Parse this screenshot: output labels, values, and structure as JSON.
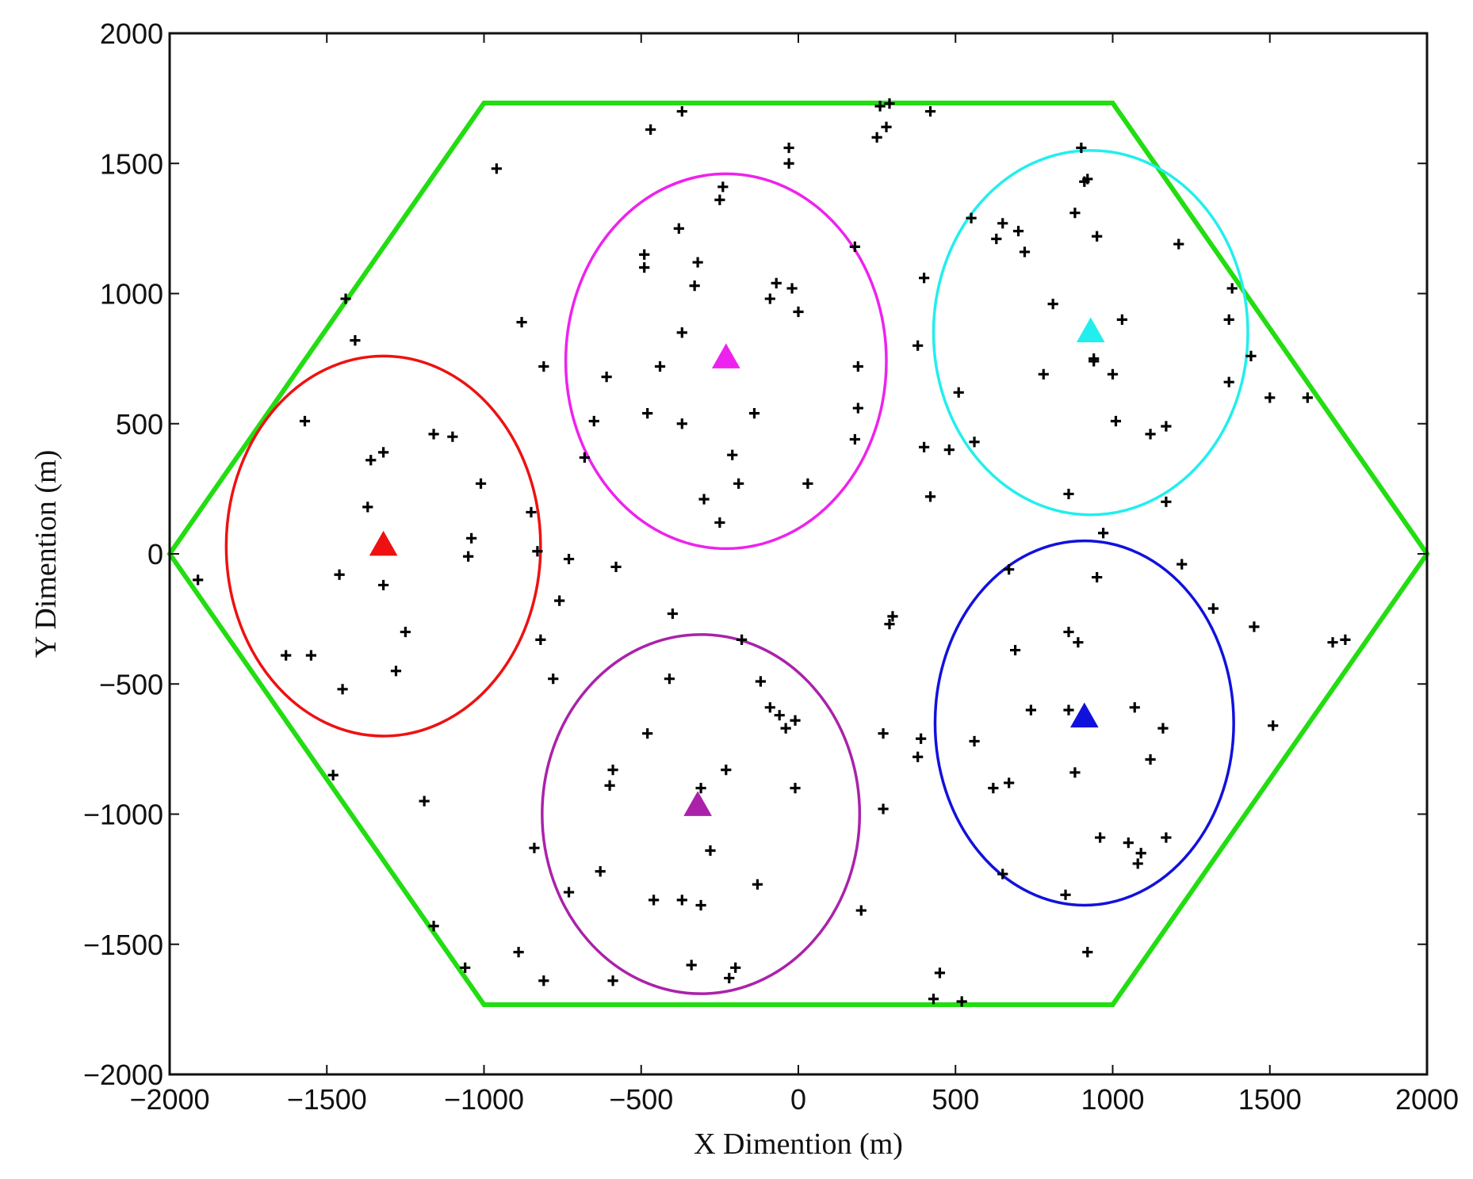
{
  "chart_data": {
    "type": "scatter",
    "title": "",
    "xlabel": "X Dimention (m)",
    "ylabel": "Y Dimention (m)",
    "xlim": [
      -2000,
      2000
    ],
    "ylim": [
      -2000,
      2000
    ],
    "xticks": [
      -2000,
      -1500,
      -1000,
      -500,
      0,
      500,
      1000,
      1500,
      2000
    ],
    "yticks": [
      -2000,
      -1500,
      -1000,
      -500,
      0,
      500,
      1000,
      1500,
      2000
    ],
    "xtick_labels": [
      "−2000",
      "−1500",
      "−1000",
      "−500",
      "0",
      "500",
      "1000",
      "1500",
      "2000"
    ],
    "ytick_labels": [
      "−2000",
      "−1500",
      "−1000",
      "−500",
      "0",
      "500",
      "1000",
      "1500",
      "2000"
    ],
    "grid": false,
    "legend": "none",
    "hexagon": {
      "color": "#22dd11",
      "vertices": [
        [
          -1000,
          1732
        ],
        [
          1000,
          1732
        ],
        [
          2000,
          0
        ],
        [
          1000,
          -1732
        ],
        [
          -1000,
          -1732
        ],
        [
          -2000,
          0
        ]
      ]
    },
    "small_cells": [
      {
        "color": "#ee1111",
        "center": [
          -1320,
          30
        ],
        "radii": [
          500,
          730
        ]
      },
      {
        "color": "#ee22ee",
        "center": [
          -230,
          740
        ],
        "radii": [
          510,
          720
        ]
      },
      {
        "color": "#22eeee",
        "center": [
          930,
          850
        ],
        "radii": [
          500,
          700
        ]
      },
      {
        "color": "#1111dd",
        "center": [
          910,
          -650
        ],
        "radii": [
          475,
          700
        ]
      },
      {
        "color": "#aa22aa",
        "center": [
          -310,
          -1000
        ],
        "radii": [
          505,
          690
        ]
      }
    ],
    "base_stations": [
      {
        "color": "#ee1111",
        "x": -1320,
        "y": 40
      },
      {
        "color": "#ee22ee",
        "x": -230,
        "y": 760
      },
      {
        "color": "#22eeee",
        "x": 930,
        "y": 860
      },
      {
        "color": "#1111dd",
        "x": 910,
        "y": -620
      },
      {
        "color": "#aa22aa",
        "x": -320,
        "y": -960
      }
    ],
    "users": {
      "color": "#000000",
      "x": [
        -1440,
        -1410,
        -1570,
        -1320,
        -1360,
        -1370,
        -1160,
        -1100,
        -1010,
        -1040,
        -1050,
        -850,
        -830,
        -1460,
        -1320,
        -1630,
        -1550,
        -1280,
        -1250,
        -1450,
        -1910,
        -960,
        -880,
        -810,
        -370,
        -370,
        -470,
        -490,
        -490,
        -320,
        -330,
        -240,
        -250,
        -30,
        -70,
        -90,
        -30,
        -20,
        0,
        -370,
        -440,
        -610,
        -650,
        -480,
        -380,
        -140,
        -210,
        -300,
        -250,
        -190,
        30,
        180,
        180,
        190,
        190,
        -680,
        260,
        280,
        420,
        400,
        380,
        420,
        400,
        480,
        510,
        550,
        560,
        630,
        650,
        700,
        720,
        810,
        880,
        900,
        910,
        920,
        950,
        940,
        1030,
        1000,
        1010,
        1120,
        1170,
        1210,
        1380,
        1370,
        1440,
        1370,
        1500,
        1620,
        1170,
        860,
        970,
        780,
        940,
        950,
        -1480,
        -1190,
        -1160,
        -1060,
        -890,
        -810,
        -730,
        -590,
        -600,
        -590,
        -840,
        -780,
        -820,
        -760,
        -400,
        -410,
        -480,
        -460,
        -370,
        -340,
        -310,
        -280,
        -310,
        -230,
        -220,
        -200,
        -130,
        -120,
        -180,
        -60,
        -90,
        -10,
        -40,
        -10,
        200,
        -630,
        -580,
        -730,
        270,
        270,
        290,
        300,
        380,
        390,
        430,
        450,
        520,
        560,
        620,
        650,
        670,
        690,
        670,
        740,
        860,
        860,
        880,
        890,
        920,
        960,
        1050,
        1080,
        1120,
        1070,
        1090,
        1170,
        1160,
        1320,
        1450,
        1510,
        1700,
        1740,
        1220,
        850,
        290,
        250
      ],
      "y": [
        980,
        820,
        510,
        390,
        360,
        180,
        460,
        450,
        270,
        60,
        -10,
        160,
        10,
        -80,
        -120,
        -390,
        -390,
        -450,
        -300,
        -520,
        -100,
        1480,
        890,
        720,
        1700,
        850,
        1630,
        1150,
        1100,
        1120,
        1030,
        1410,
        1360,
        1560,
        1040,
        980,
        1500,
        1020,
        930,
        500,
        720,
        680,
        510,
        540,
        1250,
        540,
        380,
        210,
        120,
        270,
        270,
        1180,
        440,
        560,
        720,
        370,
        1720,
        1640,
        1700,
        1060,
        800,
        220,
        410,
        400,
        620,
        1290,
        430,
        1210,
        1270,
        1240,
        1160,
        960,
        1310,
        1560,
        1430,
        1440,
        1220,
        750,
        900,
        690,
        510,
        460,
        490,
        1190,
        1020,
        900,
        760,
        660,
        600,
        600,
        200,
        230,
        80,
        690,
        740,
        -90,
        -850,
        -950,
        -1430,
        -1590,
        -1530,
        -1640,
        -1300,
        -1640,
        -890,
        -830,
        -1130,
        -480,
        -330,
        -180,
        -230,
        -480,
        -690,
        -1330,
        -1330,
        -1580,
        -1350,
        -1140,
        -900,
        -830,
        -1630,
        -1590,
        -1270,
        -490,
        -330,
        -620,
        -590,
        -640,
        -670,
        -900,
        -1370,
        -1220,
        -50,
        -20,
        -980,
        -690,
        -270,
        -240,
        -780,
        -710,
        -1710,
        -1610,
        -1720,
        -720,
        -900,
        -1230,
        -880,
        -370,
        -60,
        -600,
        -300,
        -600,
        -840,
        -340,
        -1530,
        -1090,
        -1110,
        -1190,
        -790,
        -590,
        -1150,
        -1090,
        -670,
        -210,
        -280,
        -660,
        -340,
        -330,
        -40,
        -1310,
        1730,
        1600
      ],
      "marker": "+"
    }
  }
}
